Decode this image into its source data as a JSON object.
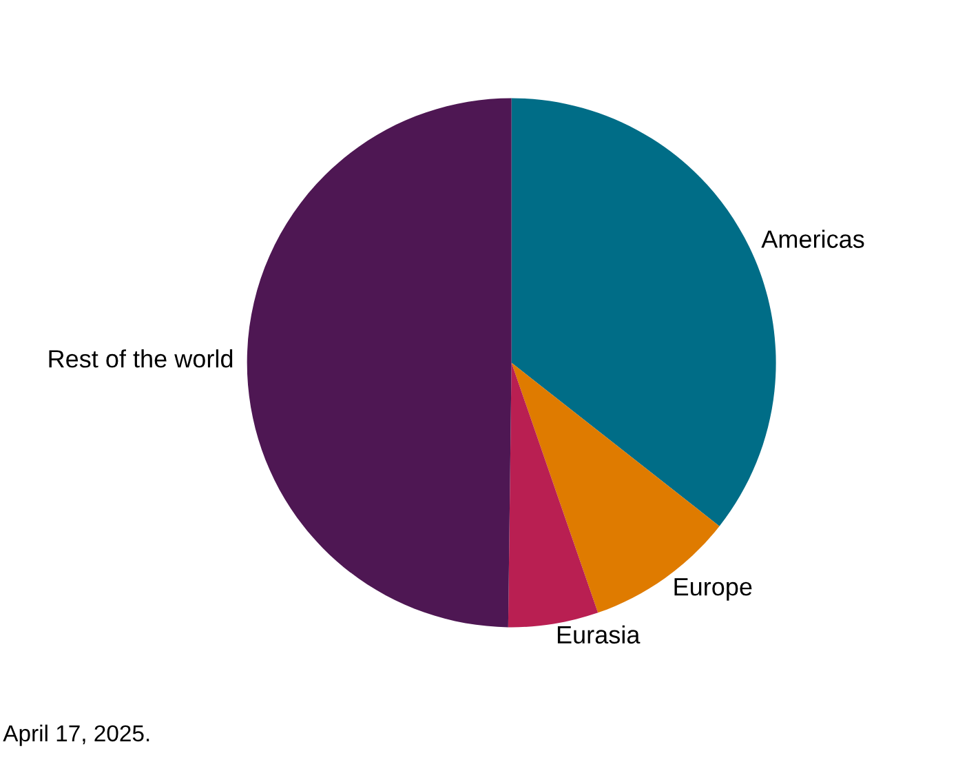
{
  "chart_data": {
    "type": "pie",
    "categories": [
      "Americas",
      "Europe",
      "Eurasia",
      "Rest of the world"
    ],
    "values": [
      35.6,
      9.1,
      5.5,
      49.8
    ],
    "colors": [
      "#006d87",
      "#df7b00",
      "#b91f52",
      "#4e1753"
    ],
    "annotations": [
      "April 17, 2025."
    ]
  }
}
